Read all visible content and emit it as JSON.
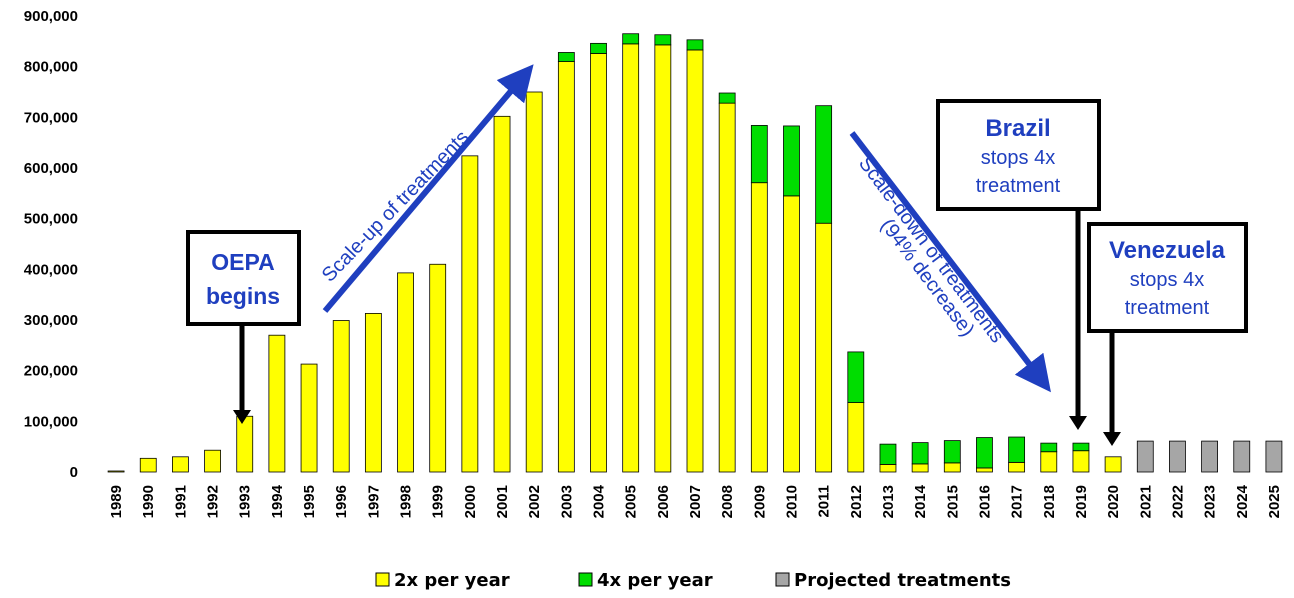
{
  "chart_data": {
    "type": "bar",
    "stacked": true,
    "categories": [
      "1989",
      "1990",
      "1991",
      "1992",
      "1993",
      "1994",
      "1995",
      "1996",
      "1997",
      "1998",
      "1999",
      "2000",
      "2001",
      "2002",
      "2003",
      "2004",
      "2005",
      "2006",
      "2007",
      "2008",
      "2009",
      "2010",
      "2011",
      "2012",
      "2013",
      "2014",
      "2015",
      "2016",
      "2017",
      "2018",
      "2019",
      "2020",
      "2021",
      "2022",
      "2023",
      "2024",
      "2025"
    ],
    "series": [
      {
        "name": "2x per year",
        "color": "#ffff00",
        "values": [
          2000,
          27000,
          30000,
          43000,
          110000,
          270000,
          213000,
          299000,
          313000,
          393000,
          410000,
          624000,
          702000,
          750000,
          810000,
          826000,
          845000,
          843000,
          833000,
          728000,
          571000,
          545000,
          491000,
          137000,
          15000,
          16000,
          18000,
          8000,
          19000,
          40000,
          42000,
          30000,
          0,
          0,
          0,
          0,
          0
        ]
      },
      {
        "name": "4x per year",
        "color": "#00dd00",
        "values": [
          0,
          0,
          0,
          0,
          0,
          0,
          0,
          0,
          0,
          0,
          0,
          0,
          0,
          0,
          18000,
          20000,
          20000,
          20000,
          20000,
          20000,
          113000,
          138000,
          232000,
          100000,
          40000,
          42000,
          44000,
          60000,
          50000,
          17000,
          15000,
          0,
          0,
          0,
          0,
          0,
          0
        ]
      },
      {
        "name": "Projected treatments",
        "color": "#a6a6a6",
        "values": [
          0,
          0,
          0,
          0,
          0,
          0,
          0,
          0,
          0,
          0,
          0,
          0,
          0,
          0,
          0,
          0,
          0,
          0,
          0,
          0,
          0,
          0,
          0,
          0,
          0,
          0,
          0,
          0,
          0,
          0,
          0,
          0,
          61000,
          61000,
          61000,
          61000,
          61000
        ]
      }
    ],
    "y_ticks": [
      "0",
      "100,000",
      "200,000",
      "300,000",
      "400,000",
      "500,000",
      "600,000",
      "700,000",
      "800,000",
      "900,000"
    ],
    "ylim": [
      0,
      900000
    ],
    "legend_position": "bottom",
    "grid": false,
    "annotations": {
      "oepa": [
        "OEPA",
        "begins"
      ],
      "scale_up": "Scale-up of treatments",
      "scale_down_1": "Scale-down of treatments",
      "scale_down_2": "(94% decrease)",
      "brazil": [
        "Brazil",
        "stops 4x",
        "treatment"
      ],
      "venezuela": [
        "Venezuela",
        "stops 4x",
        "treatment"
      ]
    }
  }
}
